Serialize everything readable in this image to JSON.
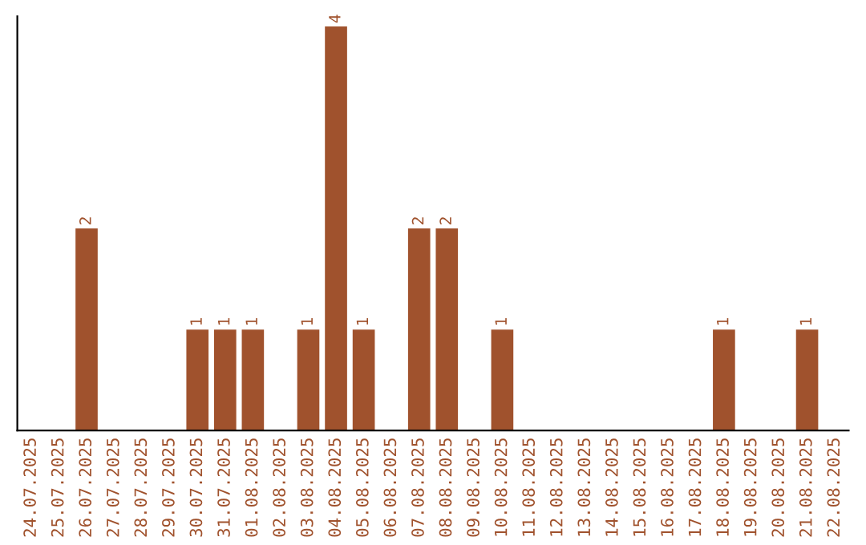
{
  "chart_data": {
    "type": "bar",
    "categories": [
      "24.07.2025",
      "25.07.2025",
      "26.07.2025",
      "27.07.2025",
      "28.07.2025",
      "29.07.2025",
      "30.07.2025",
      "31.07.2025",
      "01.08.2025",
      "02.08.2025",
      "03.08.2025",
      "04.08.2025",
      "05.08.2025",
      "06.08.2025",
      "07.08.2025",
      "08.08.2025",
      "09.08.2025",
      "10.08.2025",
      "11.08.2025",
      "12.08.2025",
      "13.08.2025",
      "14.08.2025",
      "15.08.2025",
      "16.08.2025",
      "17.08.2025",
      "18.08.2025",
      "19.08.2025",
      "20.08.2025",
      "21.08.2025",
      "22.08.2025"
    ],
    "values": [
      0,
      0,
      2,
      0,
      0,
      0,
      1,
      1,
      1,
      0,
      1,
      4,
      1,
      0,
      2,
      2,
      0,
      1,
      0,
      0,
      0,
      0,
      0,
      0,
      0,
      1,
      0,
      0,
      1,
      0
    ],
    "value_labels": [
      null,
      null,
      "2",
      null,
      null,
      null,
      "1",
      "1",
      "1",
      null,
      "1",
      "4",
      "1",
      null,
      "2",
      "2",
      null,
      "1",
      null,
      null,
      null,
      null,
      null,
      null,
      null,
      "1",
      null,
      null,
      "1",
      null
    ],
    "color": "#a0522d",
    "ylim": [
      0,
      4.1
    ],
    "tick_labels": "x",
    "grid": false,
    "legend": false
  }
}
